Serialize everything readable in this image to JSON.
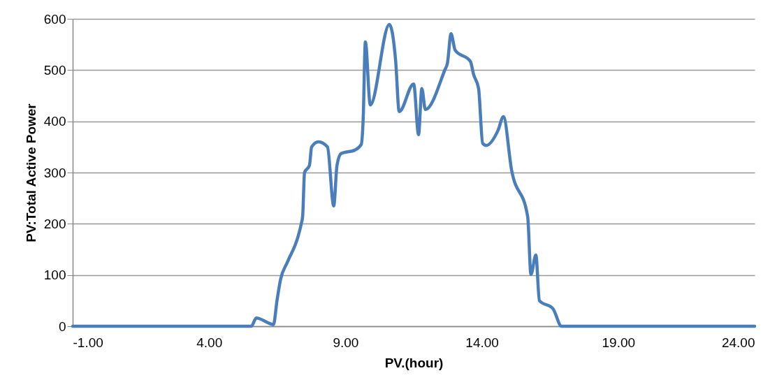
{
  "chart_data": {
    "type": "line",
    "xlabel": "PV.(hour)",
    "ylabel": "PV:Total Active Power",
    "xlim": [
      -1,
      24
    ],
    "ylim": [
      0,
      600
    ],
    "xticks": [
      {
        "value": -1,
        "label": "-1.00"
      },
      {
        "value": 4,
        "label": "4.00"
      },
      {
        "value": 9,
        "label": "9.00"
      },
      {
        "value": 14,
        "label": "14.00"
      },
      {
        "value": 19,
        "label": "19.00"
      },
      {
        "value": 24,
        "label": "24.00"
      }
    ],
    "yticks": [
      0,
      100,
      200,
      300,
      400,
      500,
      600
    ],
    "grid": "y",
    "series": [
      {
        "color": "#4a7ebb",
        "x": [
          -1,
          5.55,
          5.73,
          6.24,
          6.36,
          6.49,
          6.62,
          6.87,
          7.25,
          7.38,
          7.43,
          7.5,
          7.68,
          7.76,
          8.01,
          8.34,
          8.57,
          8.69,
          8.84,
          9.35,
          9.58,
          9.65,
          9.73,
          9.91,
          10.61,
          10.84,
          10.97,
          11.5,
          11.68,
          11.8,
          11.93,
          12.64,
          12.74,
          12.87,
          13.02,
          13.58,
          13.7,
          13.88,
          14.03,
          14.16,
          14.59,
          14.79,
          15.09,
          15.68,
          15.8,
          15.98,
          16.11,
          16.61,
          16.92,
          24
        ],
        "values": [
          0,
          0,
          16,
          5,
          3,
          50,
          91,
          125,
          173,
          200,
          214,
          300,
          314,
          350,
          360,
          350,
          235,
          314,
          337,
          344,
          355,
          405,
          555,
          432,
          589,
          518,
          419,
          473,
          374,
          464,
          423,
          500,
          514,
          571,
          539,
          517,
          491,
          464,
          357,
          353,
          382,
          409,
          305,
          214,
          101,
          139,
          50,
          34,
          0,
          0
        ]
      }
    ]
  }
}
